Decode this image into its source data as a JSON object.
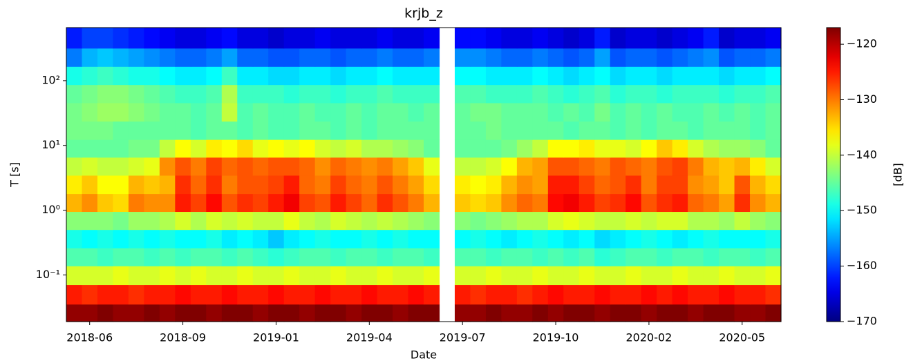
{
  "chart_data": {
    "type": "heatmap",
    "title": "krjb_z",
    "x_label": "Date",
    "y_label": "T [s]",
    "colorbar_label": "[dB]",
    "colormap": "jet",
    "log_y": true,
    "xlim": [
      0,
      46
    ],
    "xticks": [
      {
        "value": 1.5,
        "label": "2018-06"
      },
      {
        "value": 7.5,
        "label": "2018-09"
      },
      {
        "value": 13.5,
        "label": "2019-01"
      },
      {
        "value": 19.5,
        "label": "2019-04"
      },
      {
        "value": 25.5,
        "label": "2019-07"
      },
      {
        "value": 31.5,
        "label": "2019-10"
      },
      {
        "value": 37.5,
        "label": "2020-02"
      },
      {
        "value": 43.5,
        "label": "2020-05"
      }
    ],
    "ylim": [
      0.019,
      660
    ],
    "yticks": [
      {
        "value": 0.1,
        "label": "10⁻¹"
      },
      {
        "value": 1,
        "label": "10⁰"
      },
      {
        "value": 10,
        "label": "10¹"
      },
      {
        "value": 100,
        "label": "10²"
      }
    ],
    "clim": [
      -170,
      -117
    ],
    "cticks": [
      {
        "value": -120,
        "label": "−120"
      },
      {
        "value": -130,
        "label": "−130"
      },
      {
        "value": -140,
        "label": "−140"
      },
      {
        "value": -150,
        "label": "−150"
      },
      {
        "value": -160,
        "label": "−160"
      },
      {
        "value": -170,
        "label": "−170"
      }
    ],
    "y": [
      0.025,
      0.05,
      0.1,
      0.19,
      0.36,
      0.7,
      1.3,
      2.5,
      4.8,
      9,
      17,
      33,
      63,
      120,
      230,
      440
    ],
    "z": [
      [
        -118,
        -118,
        -117,
        -118,
        -118,
        -117,
        -118,
        -117,
        -117,
        -118,
        -117,
        -117,
        -118,
        -117,
        -117,
        -118,
        -117,
        -117,
        -118,
        -117,
        -117,
        -118,
        -117,
        -117,
        null,
        -118,
        -118,
        -117,
        -118,
        -118,
        -117,
        -118,
        -117,
        -117,
        -118,
        -117,
        -117,
        -118,
        -117,
        -117,
        -118,
        -117,
        -117,
        -118,
        -118,
        -117
      ],
      [
        -125,
        -126,
        -125,
        -125,
        -126,
        -125,
        -125,
        -124,
        -125,
        -125,
        -124,
        -125,
        -125,
        -124,
        -125,
        -125,
        -124,
        -125,
        -125,
        -124,
        -125,
        -125,
        -124,
        -125,
        null,
        -125,
        -126,
        -125,
        -125,
        -126,
        -125,
        -124,
        -125,
        -125,
        -124,
        -125,
        -125,
        -124,
        -125,
        -124,
        -125,
        -125,
        -124,
        -125,
        -125,
        -126
      ],
      [
        -139,
        -139,
        -139,
        -138,
        -139,
        -139,
        -138,
        -139,
        -138,
        -139,
        -139,
        -138,
        -139,
        -139,
        -138,
        -139,
        -139,
        -138,
        -139,
        -139,
        -138,
        -139,
        -139,
        -138,
        null,
        -139,
        -139,
        -138,
        -139,
        -139,
        -138,
        -139,
        -139,
        -138,
        -139,
        -139,
        -138,
        -139,
        -139,
        -138,
        -139,
        -139,
        -138,
        -139,
        -139,
        -138
      ],
      [
        -146,
        -146,
        -147,
        -146,
        -146,
        -147,
        -146,
        -147,
        -146,
        -146,
        -147,
        -146,
        -147,
        -148,
        -147,
        -146,
        -146,
        -147,
        -146,
        -146,
        -147,
        -146,
        -146,
        -147,
        null,
        -146,
        -146,
        -147,
        -146,
        -146,
        -147,
        -146,
        -147,
        -146,
        -148,
        -147,
        -146,
        -146,
        -147,
        -146,
        -146,
        -147,
        -146,
        -146,
        -147,
        -146
      ],
      [
        -149,
        -150,
        -149,
        -150,
        -149,
        -150,
        -149,
        -150,
        -150,
        -149,
        -151,
        -150,
        -151,
        -153,
        -151,
        -150,
        -149,
        -150,
        -150,
        -149,
        -150,
        -149,
        -150,
        -150,
        null,
        -150,
        -149,
        -150,
        -151,
        -150,
        -149,
        -150,
        -151,
        -150,
        -152,
        -151,
        -150,
        -149,
        -150,
        -151,
        -150,
        -149,
        -150,
        -150,
        -150,
        -149
      ],
      [
        -143,
        -143,
        -143,
        -144,
        -142,
        -142,
        -141,
        -139,
        -141,
        -139,
        -140,
        -139,
        -140,
        -140,
        -138,
        -140,
        -141,
        -139,
        -140,
        -141,
        -140,
        -141,
        -142,
        -143,
        null,
        -143,
        -144,
        -143,
        -142,
        -141,
        -141,
        -139,
        -138,
        -139,
        -140,
        -140,
        -139,
        -140,
        -139,
        -139,
        -141,
        -141,
        -142,
        -140,
        -142,
        -143
      ],
      [
        -133,
        -131,
        -134,
        -135,
        -130,
        -131,
        -131,
        -125,
        -127,
        -124,
        -128,
        -126,
        -127,
        -125,
        -123,
        -127,
        -128,
        -125,
        -127,
        -129,
        -126,
        -128,
        -130,
        -133,
        null,
        -134,
        -135,
        -134,
        -131,
        -129,
        -130,
        -124,
        -123,
        -125,
        -127,
        -126,
        -124,
        -128,
        -126,
        -125,
        -129,
        -130,
        -132,
        -126,
        -131,
        -133
      ],
      [
        -136,
        -134,
        -137,
        -137,
        -133,
        -134,
        -133,
        -126,
        -129,
        -126,
        -130,
        -128,
        -128,
        -127,
        -125,
        -129,
        -130,
        -127,
        -129,
        -130,
        -128,
        -130,
        -132,
        -135,
        null,
        -136,
        -137,
        -136,
        -133,
        -131,
        -132,
        -125,
        -125,
        -127,
        -129,
        -128,
        -126,
        -130,
        -127,
        -127,
        -131,
        -132,
        -134,
        -128,
        -133,
        -135
      ],
      [
        -140,
        -139,
        -140,
        -140,
        -139,
        -138,
        -131,
        -128,
        -130,
        -127,
        -129,
        -128,
        -129,
        -128,
        -128,
        -129,
        -131,
        -129,
        -130,
        -131,
        -130,
        -132,
        -134,
        -138,
        null,
        -140,
        -140,
        -139,
        -137,
        -133,
        -132,
        -128,
        -128,
        -129,
        -130,
        -128,
        -129,
        -130,
        -128,
        -127,
        -130,
        -133,
        -134,
        -133,
        -136,
        -139
      ],
      [
        -145,
        -145,
        -145,
        -145,
        -144,
        -144,
        -140,
        -137,
        -139,
        -136,
        -137,
        -135,
        -138,
        -137,
        -138,
        -137,
        -139,
        -140,
        -139,
        -141,
        -141,
        -142,
        -143,
        -145,
        null,
        -145,
        -145,
        -145,
        -144,
        -142,
        -140,
        -137,
        -137,
        -136,
        -138,
        -138,
        -139,
        -137,
        -134,
        -136,
        -139,
        -141,
        -142,
        -142,
        -143,
        -145
      ],
      [
        -144,
        -144,
        -144,
        -145,
        -145,
        -145,
        -145,
        -145,
        -146,
        -145,
        -145,
        -146,
        -145,
        -146,
        -146,
        -145,
        -145,
        -146,
        -145,
        -146,
        -145,
        -145,
        -145,
        -145,
        null,
        -145,
        -145,
        -144,
        -145,
        -145,
        -145,
        -145,
        -146,
        -145,
        -145,
        -146,
        -145,
        -146,
        -145,
        -145,
        -146,
        -145,
        -145,
        -145,
        -146,
        -145
      ],
      [
        -144,
        -143,
        -142,
        -142,
        -143,
        -144,
        -145,
        -145,
        -146,
        -145,
        -140,
        -146,
        -145,
        -146,
        -146,
        -145,
        -146,
        -146,
        -145,
        -146,
        -145,
        -145,
        -146,
        -145,
        null,
        -145,
        -144,
        -144,
        -145,
        -145,
        -145,
        -146,
        -145,
        -146,
        -144,
        -146,
        -145,
        -146,
        -145,
        -146,
        -146,
        -145,
        -146,
        -145,
        -146,
        -145
      ],
      [
        -145,
        -144,
        -143,
        -143,
        -144,
        -145,
        -146,
        -147,
        -147,
        -146,
        -141,
        -147,
        -147,
        -147,
        -148,
        -147,
        -147,
        -148,
        -147,
        -147,
        -146,
        -147,
        -147,
        -147,
        null,
        -146,
        -146,
        -147,
        -147,
        -147,
        -146,
        -147,
        -148,
        -147,
        -146,
        -148,
        -147,
        -147,
        -148,
        -147,
        -147,
        -147,
        -148,
        -147,
        -147,
        -146
      ],
      [
        -149,
        -148,
        -147,
        -148,
        -149,
        -149,
        -150,
        -151,
        -151,
        -150,
        -147,
        -151,
        -151,
        -152,
        -152,
        -151,
        -151,
        -152,
        -151,
        -151,
        -150,
        -151,
        -151,
        -151,
        null,
        -150,
        -150,
        -151,
        -151,
        -151,
        -150,
        -151,
        -152,
        -151,
        -150,
        -152,
        -151,
        -151,
        -152,
        -151,
        -151,
        -151,
        -152,
        -151,
        -151,
        -150
      ],
      [
        -157,
        -154,
        -153,
        -154,
        -155,
        -156,
        -157,
        -158,
        -158,
        -157,
        -155,
        -158,
        -158,
        -159,
        -159,
        -158,
        -158,
        -159,
        -158,
        -158,
        -157,
        -158,
        -158,
        -157,
        null,
        -156,
        -156,
        -157,
        -158,
        -158,
        -157,
        -158,
        -159,
        -158,
        -155,
        -159,
        -158,
        -158,
        -159,
        -158,
        -157,
        -156,
        -159,
        -158,
        -158,
        -157
      ],
      [
        -162,
        -160,
        -160,
        -161,
        -162,
        -163,
        -164,
        -165,
        -165,
        -164,
        -163,
        -165,
        -165,
        -166,
        -165,
        -165,
        -164,
        -165,
        -165,
        -165,
        -164,
        -165,
        -165,
        -164,
        null,
        -163,
        -163,
        -164,
        -165,
        -165,
        -164,
        -165,
        -166,
        -165,
        -162,
        -166,
        -165,
        -165,
        -166,
        -165,
        -164,
        -162,
        -166,
        -165,
        -165,
        -164
      ]
    ]
  }
}
